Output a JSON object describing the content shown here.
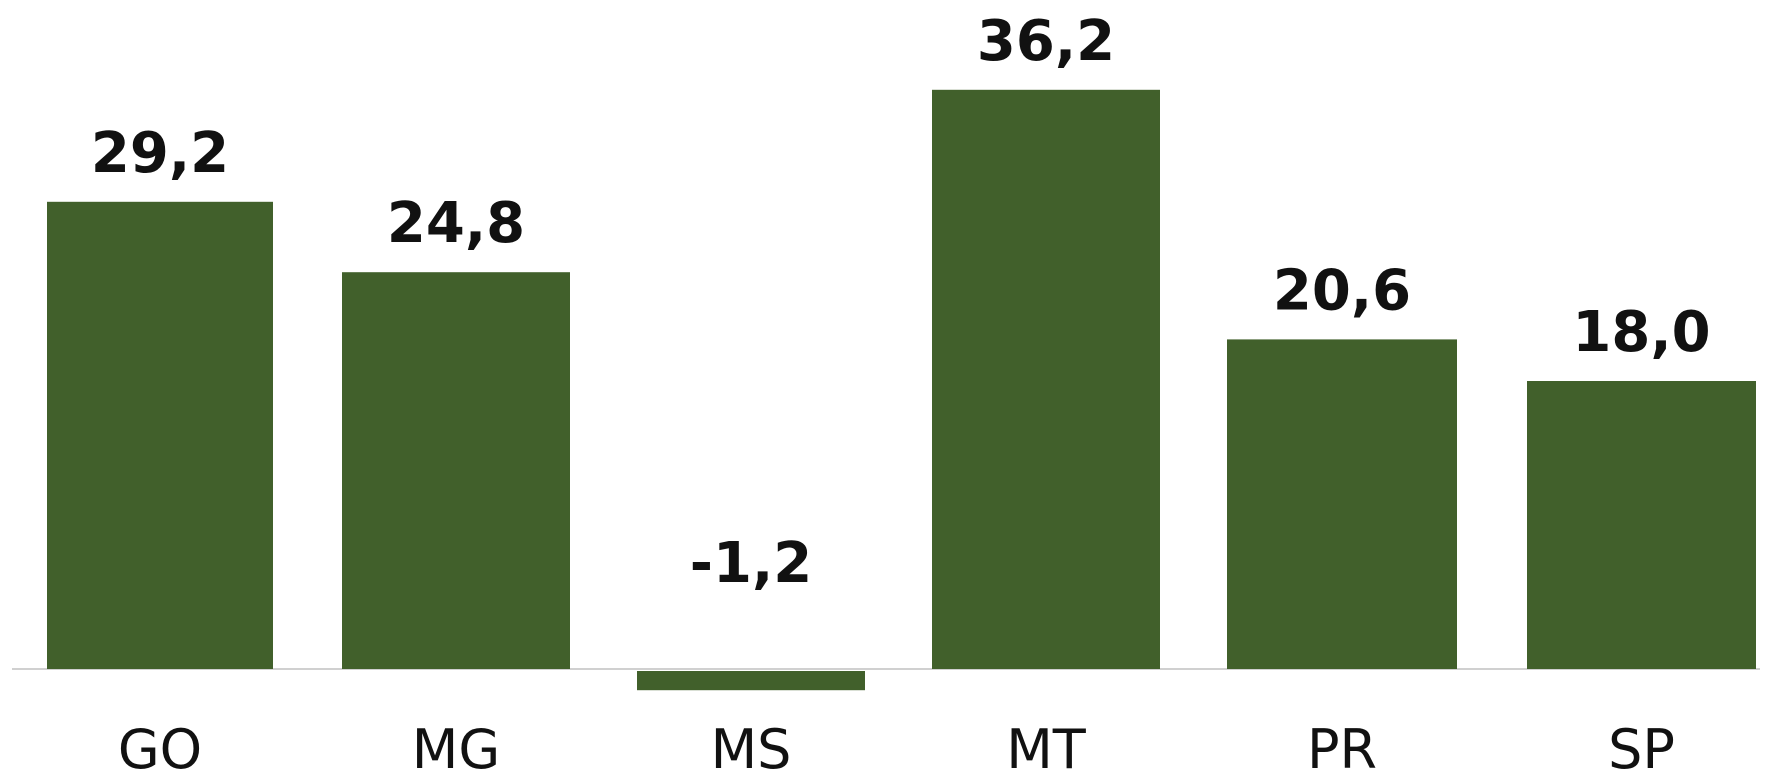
{
  "chart_data": {
    "type": "bar",
    "categories": [
      "GO",
      "MG",
      "MS",
      "MT",
      "PR",
      "SP"
    ],
    "values": [
      29.2,
      24.8,
      -1.2,
      36.2,
      20.6,
      18.0
    ],
    "value_labels": [
      "29,2",
      "24,8",
      "-1,2",
      "36,2",
      "20,6",
      "18,0"
    ],
    "title": "",
    "xlabel": "",
    "ylabel": "",
    "ylim": [
      -1.2,
      36.2
    ],
    "grid": false,
    "legend": "none",
    "colors": {
      "bar": "#41602b",
      "baseline": "#d0d0d0"
    }
  }
}
